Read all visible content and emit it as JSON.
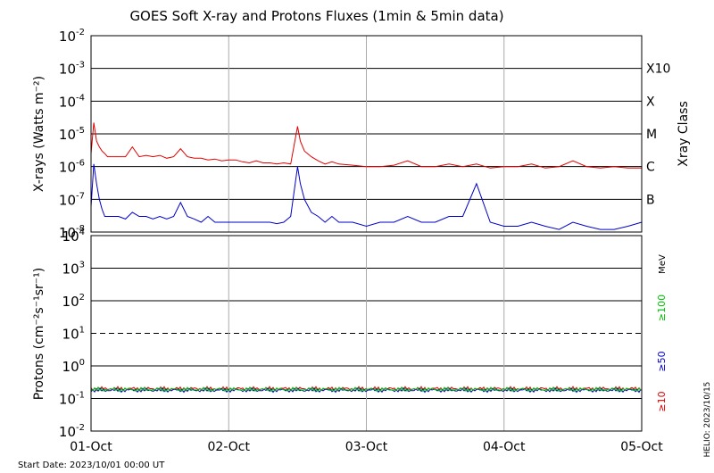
{
  "title": "GOES Soft X-ray and Protons Fluxes   (1min & 5min data)",
  "start_date": "Start Date: 2023/10/01 00:00 UT",
  "side_stamp": "HELIO: 2023/10/15",
  "chart_data": [
    {
      "type": "line",
      "name": "xray",
      "ylabel": "X-rays (Watts m⁻²)",
      "right_axis_label": "Xray Class",
      "yscale": "log",
      "ylim": [
        1e-08,
        0.01
      ],
      "y_ticks": [
        {
          "base": "10",
          "exp": "-8",
          "value": 1e-08
        },
        {
          "base": "10",
          "exp": "-7",
          "value": 1e-07
        },
        {
          "base": "10",
          "exp": "-6",
          "value": 1e-06
        },
        {
          "base": "10",
          "exp": "-5",
          "value": 1e-05
        },
        {
          "base": "10",
          "exp": "-4",
          "value": 0.0001
        },
        {
          "base": "10",
          "exp": "-3",
          "value": 0.001
        },
        {
          "base": "10",
          "exp": "-2",
          "value": 0.01
        }
      ],
      "class_labels": [
        {
          "label": "B",
          "value": 1e-07
        },
        {
          "label": "C",
          "value": 1e-06
        },
        {
          "label": "M",
          "value": 1e-05
        },
        {
          "label": "X",
          "value": 0.0001
        },
        {
          "label": "X10",
          "value": 0.001
        }
      ],
      "grid": true,
      "series": [
        {
          "color": "#e00000",
          "x": [
            0,
            0.02,
            0.04,
            0.06,
            0.08,
            0.1,
            0.12,
            0.15,
            0.2,
            0.25,
            0.3,
            0.35,
            0.4,
            0.45,
            0.5,
            0.55,
            0.6,
            0.65,
            0.7,
            0.75,
            0.8,
            0.85,
            0.9,
            0.95,
            1.0,
            1.05,
            1.1,
            1.15,
            1.2,
            1.25,
            1.3,
            1.35,
            1.4,
            1.45,
            1.5,
            1.52,
            1.55,
            1.6,
            1.65,
            1.7,
            1.75,
            1.8,
            1.9,
            2.0,
            2.1,
            2.2,
            2.3,
            2.4,
            2.5,
            2.6,
            2.7,
            2.8,
            2.9,
            3.0,
            3.1,
            3.2,
            3.3,
            3.4,
            3.5,
            3.6,
            3.7,
            3.8,
            3.9,
            4.0
          ],
          "y": [
            2.5e-06,
            2.2e-05,
            6e-06,
            4e-06,
            3e-06,
            2.5e-06,
            2e-06,
            2e-06,
            2e-06,
            2e-06,
            4e-06,
            2e-06,
            2.2e-06,
            2e-06,
            2.2e-06,
            1.8e-06,
            2e-06,
            3.5e-06,
            2e-06,
            1.8e-06,
            1.8e-06,
            1.6e-06,
            1.7e-06,
            1.5e-06,
            1.6e-06,
            1.6e-06,
            1.4e-06,
            1.3e-06,
            1.5e-06,
            1.3e-06,
            1.3e-06,
            1.2e-06,
            1.3e-06,
            1.2e-06,
            1.7e-05,
            6e-06,
            3e-06,
            2e-06,
            1.5e-06,
            1.2e-06,
            1.4e-06,
            1.2e-06,
            1.1e-06,
            1e-06,
            1e-06,
            1.1e-06,
            1.5e-06,
            1e-06,
            1e-06,
            1.2e-06,
            1e-06,
            1.2e-06,
            9e-07,
            1e-06,
            1e-06,
            1.2e-06,
            9e-07,
            1e-06,
            1.5e-06,
            1e-06,
            9e-07,
            1e-06,
            9e-07,
            9e-07
          ]
        },
        {
          "color": "#0000c8",
          "x": [
            0,
            0.02,
            0.04,
            0.06,
            0.08,
            0.1,
            0.12,
            0.15,
            0.2,
            0.25,
            0.3,
            0.35,
            0.4,
            0.45,
            0.5,
            0.55,
            0.6,
            0.65,
            0.7,
            0.75,
            0.8,
            0.85,
            0.9,
            0.95,
            1.0,
            1.05,
            1.1,
            1.15,
            1.2,
            1.25,
            1.3,
            1.35,
            1.4,
            1.45,
            1.5,
            1.52,
            1.55,
            1.6,
            1.65,
            1.7,
            1.75,
            1.8,
            1.9,
            2.0,
            2.1,
            2.2,
            2.3,
            2.4,
            2.5,
            2.6,
            2.7,
            2.8,
            2.9,
            3.0,
            3.1,
            3.2,
            3.3,
            3.4,
            3.5,
            3.6,
            3.7,
            3.8,
            3.9,
            4.0
          ],
          "y": [
            6e-08,
            1.2e-06,
            3e-07,
            1e-07,
            5e-08,
            3e-08,
            3e-08,
            3e-08,
            3e-08,
            2.5e-08,
            4e-08,
            3e-08,
            3e-08,
            2.5e-08,
            3e-08,
            2.5e-08,
            3e-08,
            8e-08,
            3e-08,
            2.5e-08,
            2e-08,
            3e-08,
            2e-08,
            2e-08,
            2e-08,
            2e-08,
            2e-08,
            2e-08,
            2e-08,
            2e-08,
            2e-08,
            1.8e-08,
            2e-08,
            3e-08,
            1e-06,
            3e-07,
            1e-07,
            4e-08,
            3e-08,
            2e-08,
            3e-08,
            2e-08,
            2e-08,
            1.5e-08,
            2e-08,
            2e-08,
            3e-08,
            2e-08,
            2e-08,
            3e-08,
            3e-08,
            3e-07,
            2e-08,
            1.5e-08,
            1.5e-08,
            2e-08,
            1.5e-08,
            1.2e-08,
            2e-08,
            1.5e-08,
            1.2e-08,
            1.2e-08,
            1.5e-08,
            2e-08
          ]
        }
      ]
    },
    {
      "type": "line",
      "name": "protons",
      "ylabel": "Protons (cm⁻²s⁻¹sr⁻¹)",
      "yscale": "log",
      "ylim": [
        0.01,
        10000
      ],
      "y_ticks": [
        {
          "base": "10",
          "exp": "-2",
          "value": 0.01
        },
        {
          "base": "10",
          "exp": "-1",
          "value": 0.1
        },
        {
          "base": "10",
          "exp": "0",
          "value": 1
        },
        {
          "base": "10",
          "exp": "1",
          "value": 10
        },
        {
          "base": "10",
          "exp": "2",
          "value": 100
        },
        {
          "base": "10",
          "exp": "3",
          "value": 1000
        },
        {
          "base": "10",
          "exp": "4",
          "value": 10000
        }
      ],
      "threshold": 10,
      "grid": true,
      "energy_unit": "MeV",
      "legend": [
        {
          "label": "≥10",
          "color": "#e00000"
        },
        {
          "label": "≥50",
          "color": "#0000c8"
        },
        {
          "label": "≥100",
          "color": "#00c000"
        }
      ],
      "series": [
        {
          "color": "#e00000",
          "level": 0.2
        },
        {
          "color": "#0000c8",
          "level": 0.18
        },
        {
          "color": "#00c000",
          "level": 0.19
        }
      ],
      "x_ticks": [
        "01-Oct",
        "02-Oct",
        "03-Oct",
        "04-Oct",
        "05-Oct"
      ],
      "xlim": [
        0,
        4
      ]
    }
  ]
}
